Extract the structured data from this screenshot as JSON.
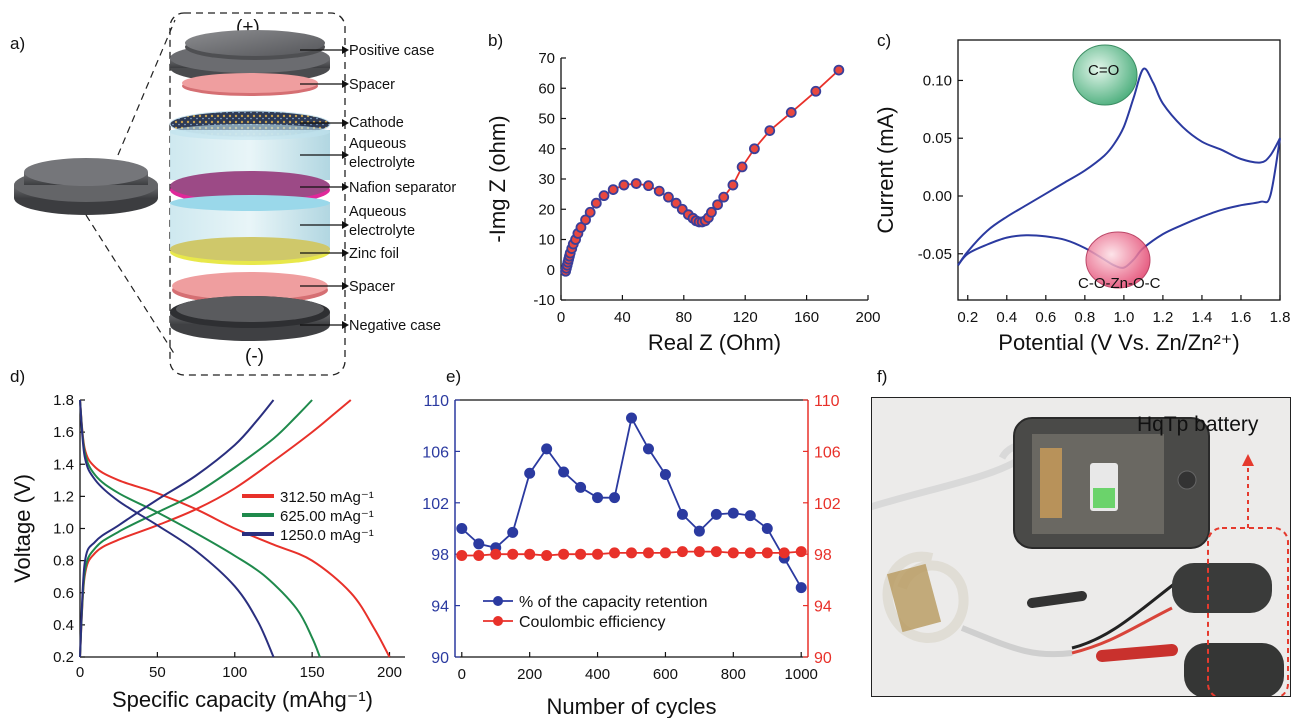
{
  "panel_letters": [
    "a)",
    "b)",
    "c)",
    "d)",
    "e)",
    "f)"
  ],
  "schematic": {
    "top_sign": "(+)",
    "bottom_sign": "(-)",
    "layers": [
      "Positive case",
      "Spacer",
      "Cathode",
      "Aqueous electrolyte",
      "Nafion separator",
      "Aqueous electrolyte",
      "Zinc foil",
      "Spacer",
      "Negative case"
    ]
  },
  "chart_data": [
    {
      "panel": "b",
      "type": "scatter",
      "xlabel": "Real Z (Ohm)",
      "ylabel": "-Img Z (ohm)",
      "xlim": [
        0,
        200
      ],
      "ylim": [
        -10,
        70
      ],
      "xticks": [
        0,
        40,
        80,
        120,
        160,
        200
      ],
      "yticks": [
        -10,
        0,
        10,
        20,
        30,
        40,
        50,
        60,
        70
      ],
      "marker_color": "#e8483f",
      "marker_edge": "#3a3f9a",
      "x": [
        3,
        3.5,
        4,
        4.5,
        5,
        5.5,
        6,
        7,
        8,
        9.5,
        11,
        13,
        16,
        19,
        23,
        28,
        34,
        41,
        49,
        57,
        64,
        70,
        75,
        79,
        83,
        86,
        88,
        90,
        92,
        94,
        96,
        98,
        102,
        106,
        112,
        118,
        126,
        136,
        150,
        166,
        181
      ],
      "y": [
        -0.5,
        0.5,
        1.5,
        2.5,
        3.5,
        4.5,
        5.5,
        7,
        8.5,
        10,
        12,
        14,
        16.5,
        19,
        22,
        24.5,
        26.5,
        28,
        28.5,
        27.8,
        26,
        24,
        22,
        20,
        18.2,
        17,
        16.2,
        15.8,
        15.8,
        16.2,
        17.2,
        19,
        21.5,
        24,
        28,
        34,
        40,
        46,
        52,
        59,
        66
      ]
    },
    {
      "panel": "c",
      "type": "line",
      "xlabel": "Potential (V Vs. Zn/Zn²⁺)",
      "ylabel": "Current (mA)",
      "xlim": [
        0.15,
        1.8
      ],
      "ylim": [
        -0.09,
        0.135
      ],
      "xticks": [
        0.2,
        0.4,
        0.6,
        0.8,
        1.0,
        1.2,
        1.4,
        1.6,
        1.8
      ],
      "yticks": [
        -0.05,
        0.0,
        0.05,
        0.1
      ],
      "line_color": "#2b3aa0",
      "annotations": [
        "C=O",
        "C-O-Zn-O-C"
      ],
      "oxidation": {
        "x": [
          0.15,
          0.2,
          0.3,
          0.4,
          0.5,
          0.6,
          0.7,
          0.8,
          0.9,
          0.95,
          1.0,
          1.05,
          1.1,
          1.15,
          1.2,
          1.3,
          1.4,
          1.5,
          1.6,
          1.7,
          1.75,
          1.8
        ],
        "y": [
          -0.06,
          -0.048,
          -0.03,
          -0.018,
          -0.008,
          0.002,
          0.012,
          0.022,
          0.035,
          0.045,
          0.06,
          0.085,
          0.11,
          0.098,
          0.08,
          0.06,
          0.047,
          0.04,
          0.032,
          0.029,
          0.035,
          0.05
        ]
      },
      "reduction": {
        "x": [
          1.8,
          1.75,
          1.7,
          1.6,
          1.5,
          1.4,
          1.3,
          1.2,
          1.1,
          1.05,
          1.0,
          0.95,
          0.9,
          0.8,
          0.7,
          0.6,
          0.5,
          0.4,
          0.3,
          0.2,
          0.15
        ],
        "y": [
          0.05,
          0.0,
          -0.005,
          -0.008,
          -0.012,
          -0.018,
          -0.025,
          -0.033,
          -0.045,
          -0.055,
          -0.062,
          -0.06,
          -0.055,
          -0.045,
          -0.038,
          -0.035,
          -0.034,
          -0.036,
          -0.042,
          -0.05,
          -0.06
        ]
      }
    },
    {
      "panel": "d",
      "type": "line",
      "xlabel": "Specific capacity (mAhg⁻¹)",
      "ylabel": "Voltage (V)",
      "xlim": [
        0,
        210
      ],
      "ylim": [
        0.2,
        1.8
      ],
      "xticks": [
        0,
        50,
        100,
        150,
        200
      ],
      "yticks": [
        0.2,
        0.4,
        0.6,
        0.8,
        1.0,
        1.2,
        1.4,
        1.6,
        1.8
      ],
      "legend_position": "right",
      "series": [
        {
          "name": "312.50 mAg⁻¹",
          "color": "#e8312a",
          "charge": {
            "x": [
              0,
              3,
              10,
              25,
              50,
              75,
              100,
              125,
              150,
              165,
              175
            ],
            "y": [
              0.2,
              0.7,
              0.85,
              0.93,
              1.02,
              1.12,
              1.25,
              1.42,
              1.6,
              1.72,
              1.8
            ]
          },
          "discharge": {
            "x": [
              0,
              3,
              10,
              25,
              50,
              75,
              100,
              125,
              150,
              175,
              190,
              200
            ],
            "y": [
              1.8,
              1.5,
              1.38,
              1.3,
              1.22,
              1.12,
              1.0,
              0.9,
              0.8,
              0.6,
              0.38,
              0.2
            ]
          }
        },
        {
          "name": "625.00 mAg⁻¹",
          "color": "#1f8a4c",
          "charge": {
            "x": [
              0,
              3,
              10,
              25,
              50,
              75,
              100,
              125,
              140,
              150
            ],
            "y": [
              0.2,
              0.72,
              0.88,
              0.98,
              1.1,
              1.22,
              1.38,
              1.56,
              1.7,
              1.8
            ]
          },
          "discharge": {
            "x": [
              0,
              3,
              10,
              25,
              50,
              75,
              100,
              120,
              140,
              150,
              155
            ],
            "y": [
              1.8,
              1.48,
              1.33,
              1.22,
              1.1,
              0.97,
              0.83,
              0.7,
              0.5,
              0.32,
              0.2
            ]
          }
        },
        {
          "name": "1250.0 mAg⁻¹",
          "color": "#2a2f7f",
          "charge": {
            "x": [
              0,
              3,
              10,
              25,
              50,
              75,
              100,
              115,
              125
            ],
            "y": [
              0.2,
              0.78,
              0.92,
              1.02,
              1.18,
              1.33,
              1.52,
              1.68,
              1.8
            ]
          },
          "discharge": {
            "x": [
              0,
              3,
              10,
              25,
              50,
              75,
              100,
              115,
              125
            ],
            "y": [
              1.8,
              1.45,
              1.3,
              1.17,
              1.02,
              0.86,
              0.64,
              0.42,
              0.2
            ]
          }
        }
      ]
    },
    {
      "panel": "e",
      "type": "line",
      "xlabel": "Number of cycles",
      "xlim": [
        -20,
        1020
      ],
      "ylim": [
        90,
        110
      ],
      "xticks": [
        0,
        200,
        400,
        600,
        800,
        1000
      ],
      "yticks": [
        90,
        94,
        98,
        102,
        106,
        110
      ],
      "legend_position": "bottom-left",
      "series": [
        {
          "name": "% of the capacity retention",
          "color": "#2b3aa0",
          "x": [
            0,
            50,
            100,
            150,
            200,
            250,
            300,
            350,
            400,
            450,
            500,
            550,
            600,
            650,
            700,
            750,
            800,
            850,
            900,
            950,
            1000
          ],
          "y": [
            100,
            98.8,
            98.5,
            99.7,
            104.3,
            106.2,
            104.4,
            103.2,
            102.4,
            102.4,
            108.6,
            106.2,
            104.2,
            101.1,
            99.8,
            101.1,
            101.2,
            101.0,
            100.0,
            97.7,
            95.4
          ]
        },
        {
          "name": "Coulombic efficiency",
          "color": "#e8312a",
          "x": [
            0,
            50,
            100,
            150,
            200,
            250,
            300,
            350,
            400,
            450,
            500,
            550,
            600,
            650,
            700,
            750,
            800,
            850,
            900,
            950,
            1000
          ],
          "y": [
            97.9,
            97.9,
            98.0,
            98.0,
            98.0,
            97.9,
            98.0,
            98.0,
            98.0,
            98.1,
            98.1,
            98.1,
            98.1,
            98.2,
            98.2,
            98.2,
            98.1,
            98.1,
            98.1,
            98.1,
            98.2
          ]
        }
      ]
    }
  ],
  "photo": {
    "label": "HqTp battery"
  }
}
